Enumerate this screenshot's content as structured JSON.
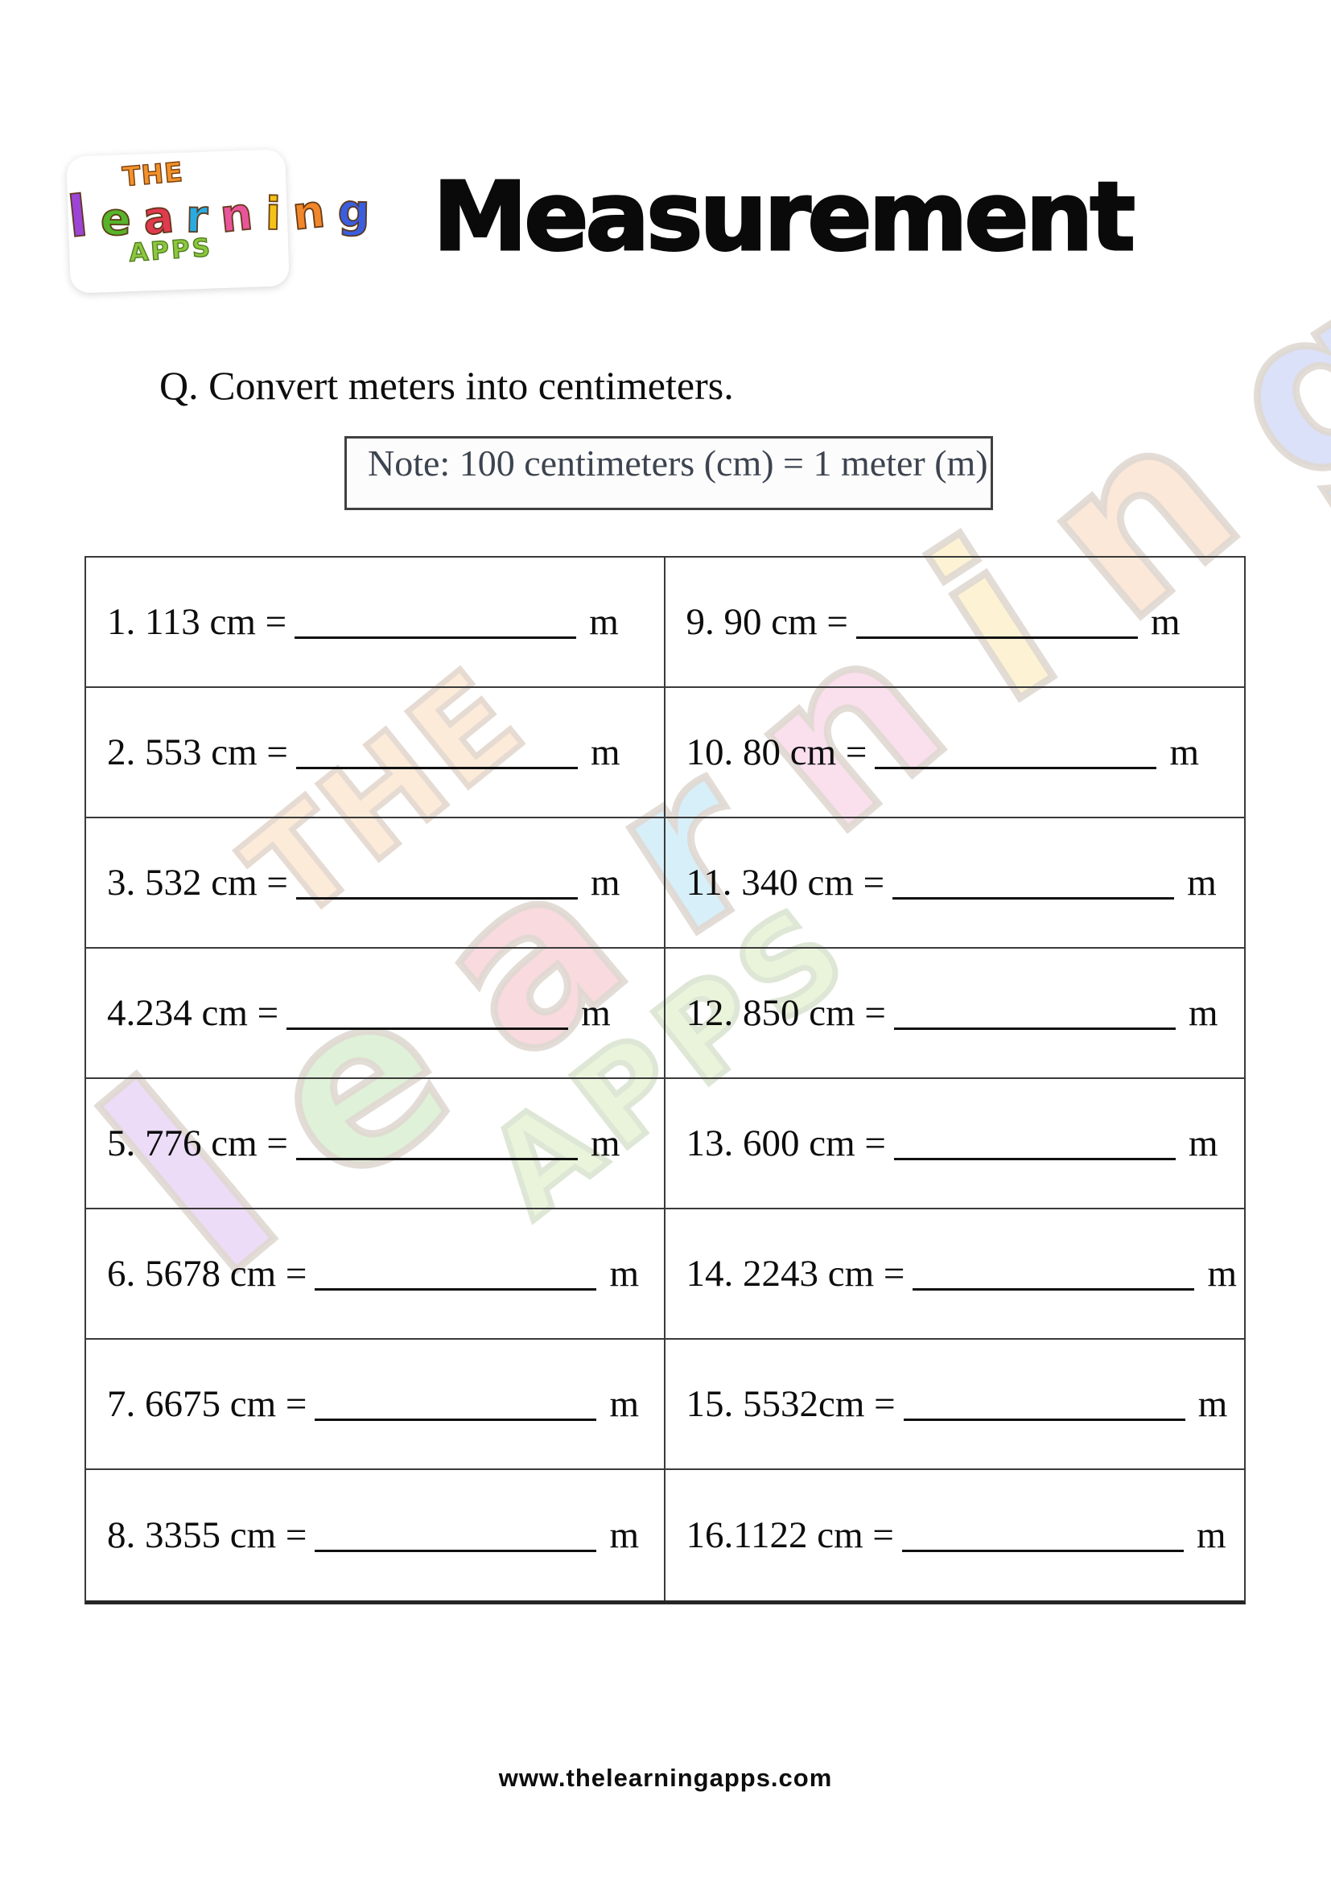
{
  "page": {
    "title": "Measurement",
    "question": "Q. Convert meters into centimeters.",
    "note": "Note: 100 centimeters (cm) = 1 meter (m)",
    "footer": "www.thelearningapps.com"
  },
  "brand": {
    "the": "THE",
    "apps": "APPS",
    "the_style": "color:#f0932b",
    "apps_style": "color:#8dc63f",
    "letters": [
      {
        "ch": "l",
        "style": "color:#9b45d6"
      },
      {
        "ch": "e",
        "style": "color:#56b32b"
      },
      {
        "ch": "a",
        "style": "color:#e03a50"
      },
      {
        "ch": "r",
        "style": "color:#29abe2"
      },
      {
        "ch": "n",
        "style": "color:#e8559a"
      },
      {
        "ch": "i",
        "style": "color:#f5c218"
      },
      {
        "ch": "n",
        "style": "color:#f0872b"
      },
      {
        "ch": "g",
        "style": "color:#3b5ede"
      }
    ]
  },
  "worksheet": {
    "unit": "m",
    "problems": [
      {
        "text": "1. 113 cm ="
      },
      {
        "text": "2. 553 cm ="
      },
      {
        "text": "3. 532 cm ="
      },
      {
        "text": "4.234 cm ="
      },
      {
        "text": "5. 776 cm ="
      },
      {
        "text": "6. 5678 cm ="
      },
      {
        "text": "7. 6675 cm ="
      },
      {
        "text": "8. 3355 cm ="
      },
      {
        "text": "9. 90 cm ="
      },
      {
        "text": "10. 80 cm ="
      },
      {
        "text": "11. 340 cm ="
      },
      {
        "text": "12. 850 cm ="
      },
      {
        "text": "13. 600 cm ="
      },
      {
        "text": "14. 2243 cm ="
      },
      {
        "text": "15. 5532cm ="
      },
      {
        "text": "16.1122 cm ="
      }
    ]
  }
}
